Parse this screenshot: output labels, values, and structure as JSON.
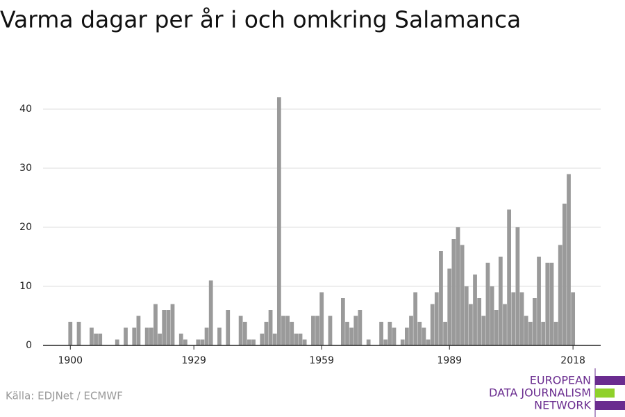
{
  "chart_data": {
    "type": "bar",
    "title": "Varma dagar per år i och omkring Salamanca",
    "source": "Källa: EDJNet / ECMWF",
    "logo": [
      "EUROPEAN",
      "DATA JOURNALISM",
      "NETWORK"
    ],
    "color": "#9a9a9a",
    "x": [
      1900,
      1901,
      1902,
      1903,
      1904,
      1905,
      1906,
      1907,
      1908,
      1909,
      1910,
      1911,
      1912,
      1913,
      1914,
      1915,
      1916,
      1917,
      1918,
      1919,
      1920,
      1921,
      1922,
      1923,
      1924,
      1925,
      1926,
      1927,
      1928,
      1929,
      1930,
      1931,
      1932,
      1933,
      1934,
      1935,
      1936,
      1937,
      1938,
      1939,
      1940,
      1941,
      1942,
      1943,
      1944,
      1945,
      1946,
      1947,
      1948,
      1949,
      1950,
      1951,
      1952,
      1953,
      1954,
      1955,
      1956,
      1957,
      1958,
      1959,
      1960,
      1961,
      1962,
      1963,
      1964,
      1965,
      1966,
      1967,
      1968,
      1969,
      1970,
      1971,
      1972,
      1973,
      1974,
      1975,
      1976,
      1977,
      1978,
      1979,
      1980,
      1981,
      1982,
      1983,
      1984,
      1985,
      1986,
      1987,
      1988,
      1989,
      1990,
      1991,
      1992,
      1993,
      1994,
      1995,
      1996,
      1997,
      1998,
      1999,
      2000,
      2001,
      2002,
      2003,
      2004,
      2005,
      2006,
      2007,
      2008,
      2009,
      2010,
      2011,
      2012,
      2013,
      2014,
      2015,
      2016,
      2017,
      2018
    ],
    "values": [
      4,
      0,
      4,
      0,
      0,
      3,
      2,
      2,
      0,
      0,
      0,
      1,
      0,
      3,
      0,
      3,
      5,
      0,
      3,
      3,
      7,
      2,
      6,
      6,
      7,
      0,
      2,
      1,
      0,
      0,
      1,
      1,
      3,
      11,
      0,
      3,
      0,
      6,
      0,
      0,
      5,
      4,
      1,
      1,
      0,
      2,
      4,
      6,
      2,
      42,
      5,
      5,
      4,
      2,
      2,
      1,
      0,
      5,
      5,
      9,
      0,
      5,
      0,
      0,
      8,
      4,
      3,
      5,
      6,
      0,
      1,
      0,
      0,
      4,
      1,
      4,
      3,
      0,
      1,
      3,
      5,
      9,
      4,
      3,
      1,
      7,
      9,
      16,
      4,
      13,
      18,
      20,
      17,
      10,
      7,
      12,
      8,
      5,
      14,
      10,
      6,
      15,
      7,
      23,
      9,
      20,
      9,
      5,
      4,
      8,
      15,
      4,
      14,
      14,
      4,
      17,
      24,
      29,
      9
    ],
    "xlim": [
      1893.6,
      2024.5
    ],
    "xticks": [
      1900,
      1929,
      1959,
      1989,
      2018
    ],
    "ylim": [
      0,
      40
    ],
    "yticks": [
      0,
      10,
      20,
      30,
      40
    ],
    "grid": true
  }
}
